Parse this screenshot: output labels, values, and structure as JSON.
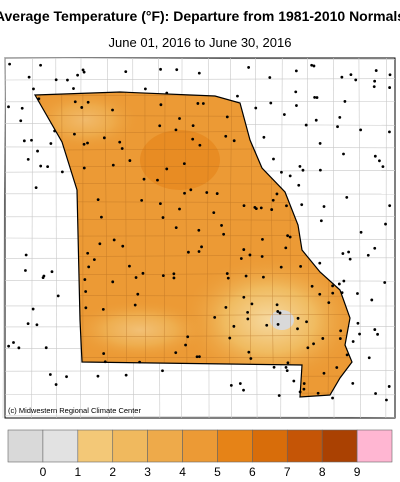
{
  "header": {
    "title": "Average Temperature (°F): Departure from 1981-2010 Normals",
    "subtitle": "June 01, 2016 to June 30, 2016"
  },
  "credit": "(c) Midwestern Regional Climate Center",
  "legend": {
    "labels": [
      "0",
      "1",
      "2",
      "3",
      "4",
      "5",
      "6",
      "7",
      "8",
      "9"
    ],
    "colors": [
      "#d9d9d9",
      "#e2e2e2",
      "#f3c877",
      "#f0b95e",
      "#eeaa4a",
      "#ec9a35",
      "#e68317",
      "#d86d0a",
      "#c55506",
      "#aa4102",
      "#ffb6d2"
    ]
  }
}
